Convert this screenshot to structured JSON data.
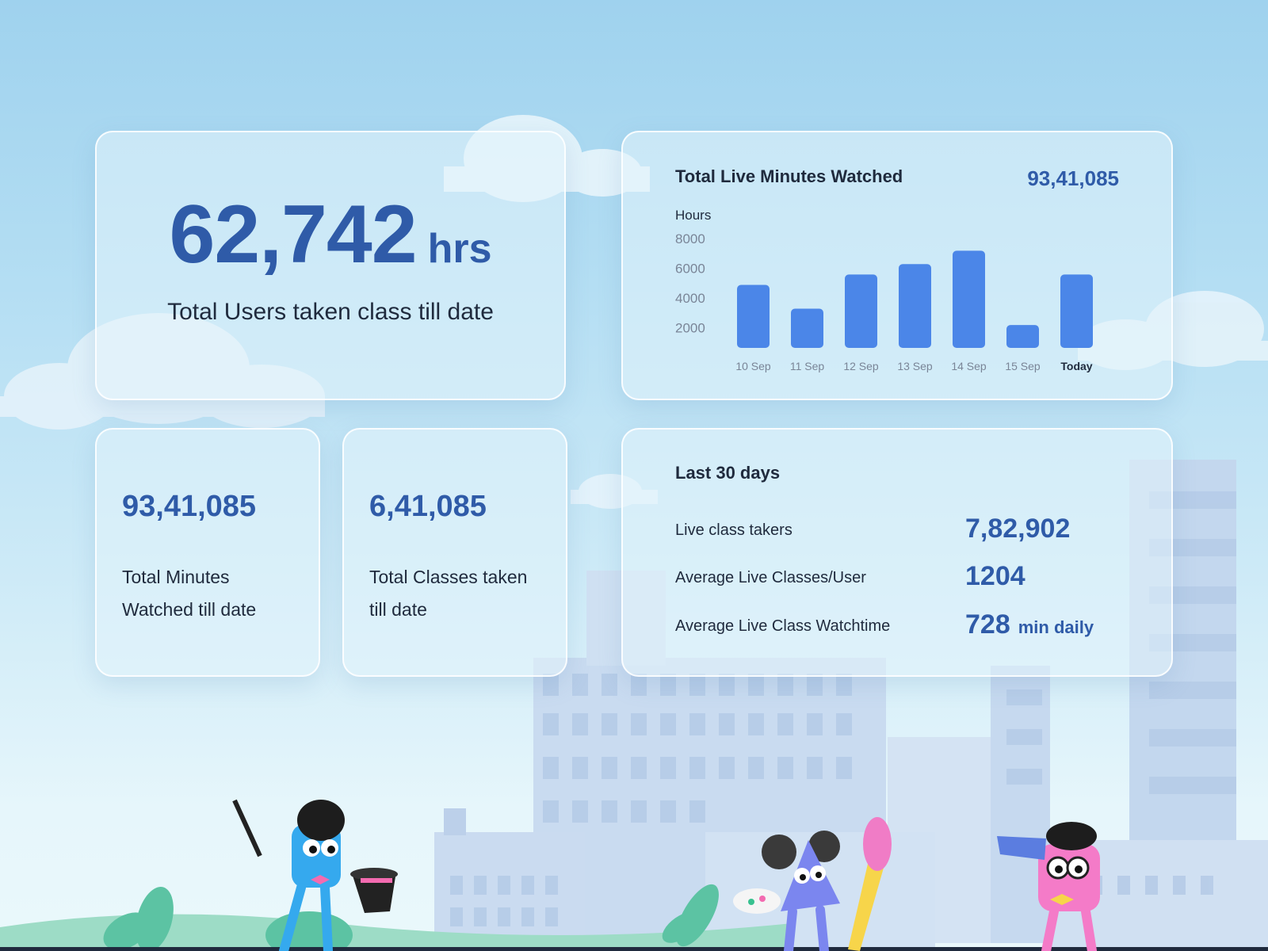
{
  "hours_card": {
    "value": "62,742",
    "unit": "hrs",
    "caption": "Total Users taken class till date"
  },
  "chart_card": {
    "title": "Total Live Minutes Watched",
    "total": "93,41,085",
    "y_label": "Hours"
  },
  "chart_data": {
    "type": "bar",
    "title": "Total Live Minutes Watched",
    "ylabel": "Hours",
    "categories": [
      "10 Sep",
      "11 Sep",
      "12 Sep",
      "13 Sep",
      "14 Sep",
      "15 Sep",
      "Today"
    ],
    "values": [
      5200,
      3600,
      5900,
      6600,
      7500,
      2500,
      5900
    ],
    "yticks": [
      2000,
      4000,
      6000,
      8000
    ],
    "ylim": [
      0,
      8000
    ],
    "bar_color": "#4b86e8",
    "highlight_category": "Today"
  },
  "minutes_card": {
    "value": "93,41,085",
    "label_line1": "Total Minutes",
    "label_line2": "Watched till date"
  },
  "classes_card": {
    "value": "6,41,085",
    "label_line1": "Total Classes taken",
    "label_line2": "till date"
  },
  "last30": {
    "title": "Last 30 days",
    "rows": [
      {
        "label": "Live class takers",
        "value": "7,82,902",
        "unit": ""
      },
      {
        "label": "Average Live Classes/User",
        "value": "1204",
        "unit": ""
      },
      {
        "label": "Average Live Class Watchtime",
        "value": "728",
        "unit": "min daily"
      }
    ]
  },
  "colors": {
    "accent": "#2f5ba8",
    "bar": "#4b86e8",
    "text": "#1f2a3d"
  }
}
